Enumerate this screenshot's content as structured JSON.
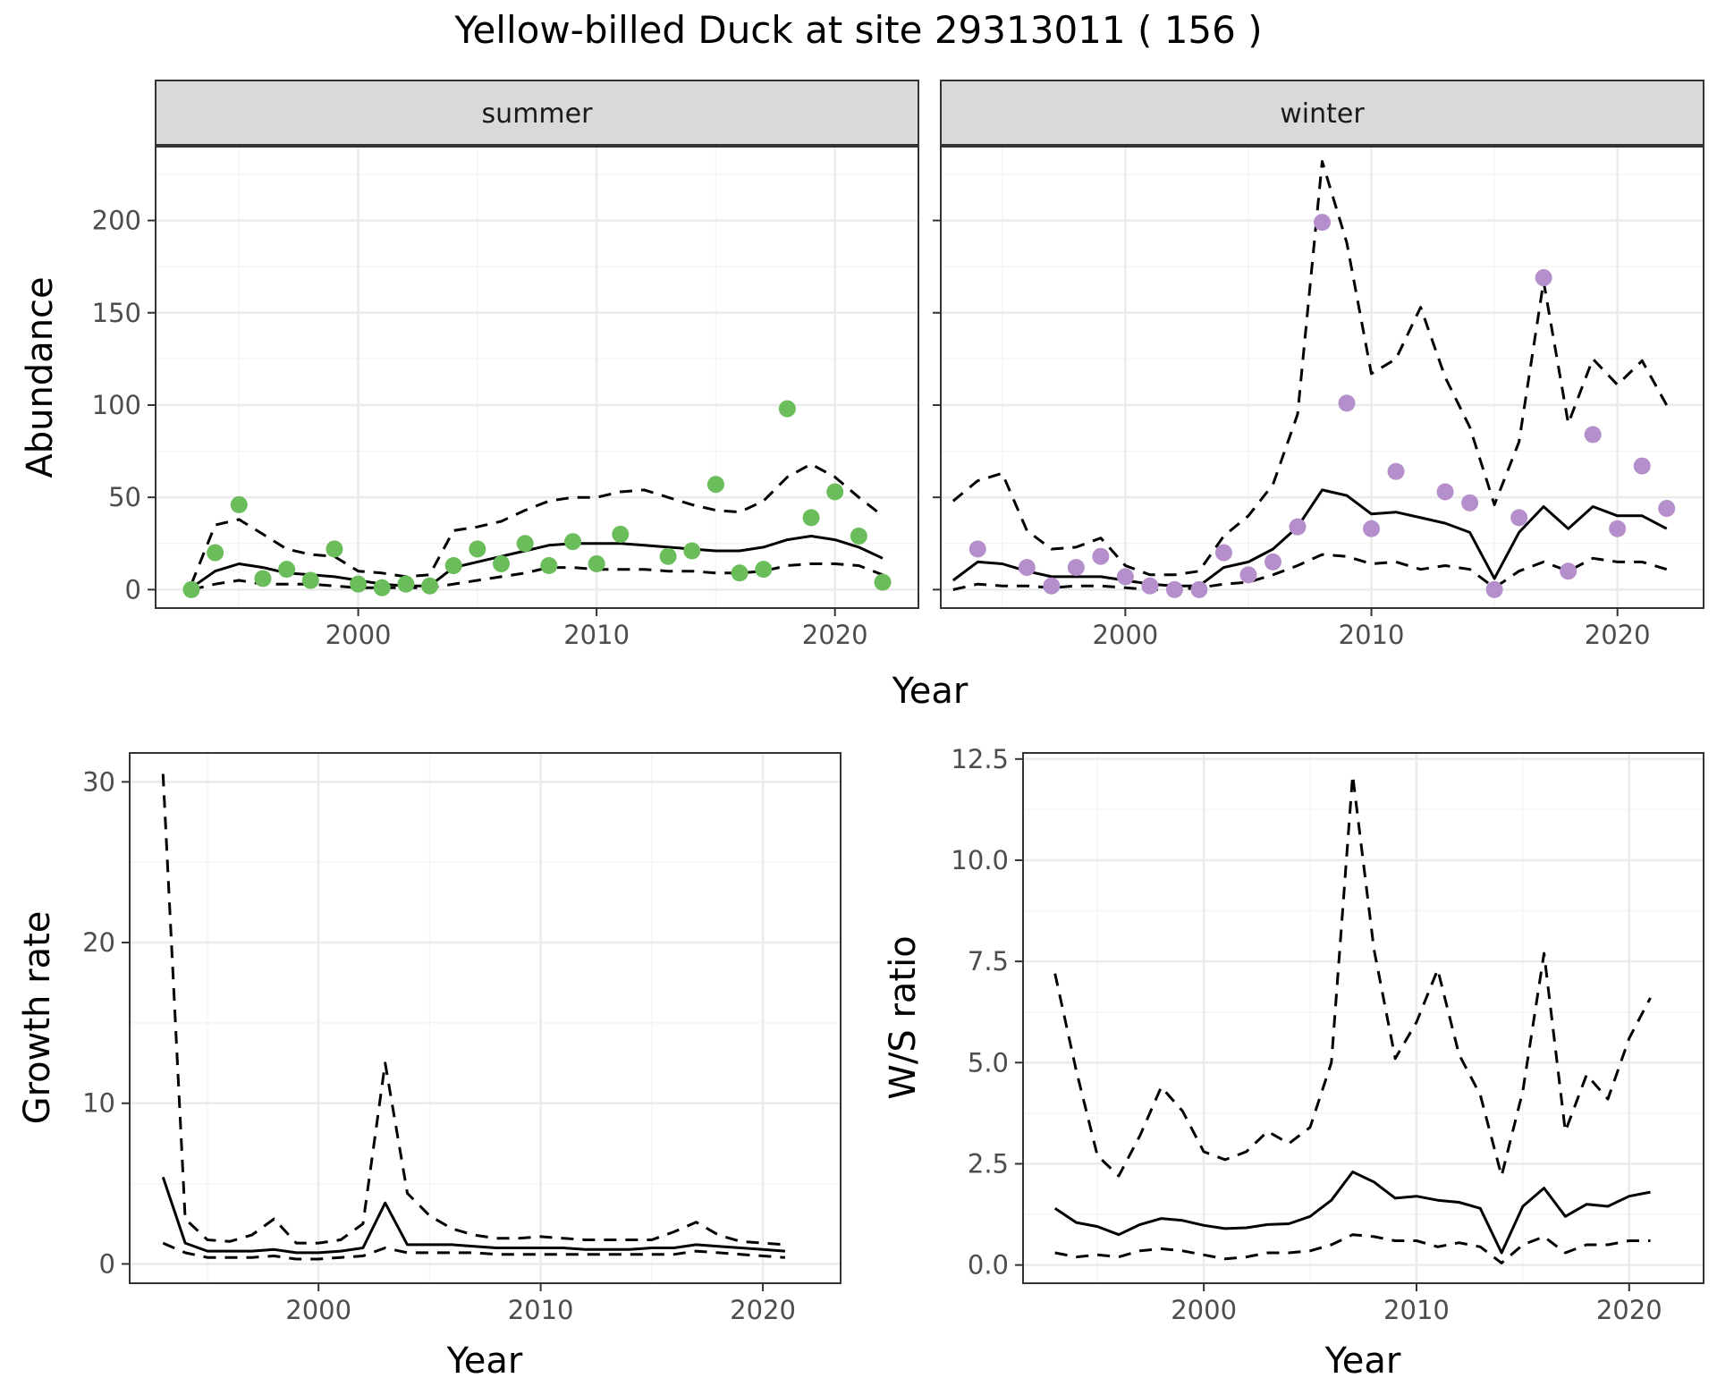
{
  "title": "Yellow-billed Duck at site 29313011 ( 156 )",
  "colors": {
    "summer_points": "#6ABD5A",
    "winter_points": "#B48FCB",
    "lines": "#000000"
  },
  "chart_data": [
    {
      "id": "summer",
      "type": "line",
      "strip": "summer",
      "xlabel": "",
      "ylabel": "Abundance",
      "xlim": [
        1991.5,
        2023.5
      ],
      "ylim": [
        -10,
        240
      ],
      "xticks": [
        2000,
        2010,
        2020
      ],
      "yticks": [
        0,
        50,
        100,
        150,
        200
      ],
      "show_y_ticks": true,
      "x": [
        1993,
        1994,
        1995,
        1996,
        1997,
        1998,
        1999,
        2000,
        2001,
        2002,
        2003,
        2004,
        2005,
        2006,
        2007,
        2008,
        2009,
        2010,
        2011,
        2012,
        2013,
        2014,
        2015,
        2016,
        2017,
        2018,
        2019,
        2020,
        2021,
        2022
      ],
      "estimate": [
        1,
        10,
        14,
        12,
        9,
        8,
        7,
        5,
        3,
        2,
        2,
        12,
        15,
        18,
        21,
        24,
        25,
        25,
        25,
        24,
        23,
        22,
        21,
        21,
        23,
        27,
        29,
        27,
        23,
        17
      ],
      "lower": [
        0,
        3,
        5,
        3,
        3,
        3,
        2,
        1,
        1,
        1,
        1,
        3,
        5,
        7,
        9,
        12,
        12,
        11,
        11,
        11,
        10,
        10,
        9,
        9,
        10,
        13,
        14,
        14,
        13,
        8
      ],
      "upper": [
        3,
        35,
        38,
        30,
        22,
        19,
        18,
        10,
        9,
        7,
        8,
        32,
        34,
        37,
        43,
        48,
        50,
        50,
        53,
        54,
        50,
        46,
        43,
        42,
        48,
        61,
        68,
        61,
        50,
        40
      ],
      "points": [
        0,
        20,
        46,
        6,
        11,
        5,
        22,
        3,
        1,
        3,
        2,
        13,
        22,
        14,
        25,
        13,
        26,
        14,
        30,
        null,
        18,
        21,
        57,
        9,
        11,
        98,
        39,
        53,
        29,
        4
      ],
      "point_color": "#6ABD5A"
    },
    {
      "id": "winter",
      "type": "line",
      "strip": "winter",
      "xlabel": "",
      "ylabel": "",
      "xlim": [
        1992.5,
        2023.5
      ],
      "ylim": [
        -10,
        240
      ],
      "xticks": [
        2000,
        2010,
        2020
      ],
      "yticks": [
        0,
        50,
        100,
        150,
        200
      ],
      "show_y_ticks": false,
      "x": [
        1993,
        1994,
        1995,
        1996,
        1997,
        1998,
        1999,
        2000,
        2001,
        2002,
        2003,
        2004,
        2005,
        2006,
        2007,
        2008,
        2009,
        2010,
        2011,
        2012,
        2013,
        2014,
        2015,
        2016,
        2017,
        2018,
        2019,
        2020,
        2021,
        2022
      ],
      "estimate": [
        5,
        15,
        14,
        10,
        7,
        7,
        7,
        5,
        3,
        2,
        2,
        12,
        15,
        22,
        34,
        54,
        51,
        41,
        42,
        39,
        36,
        31,
        6,
        31,
        45,
        33,
        45,
        40,
        40,
        33
      ],
      "lower": [
        0,
        3,
        2,
        2,
        1,
        2,
        2,
        1,
        0,
        0,
        1,
        3,
        4,
        8,
        13,
        19,
        18,
        14,
        15,
        11,
        13,
        11,
        1,
        10,
        15,
        10,
        17,
        15,
        15,
        11
      ],
      "upper": [
        48,
        59,
        63,
        32,
        22,
        23,
        28,
        13,
        8,
        8,
        10,
        29,
        40,
        57,
        95,
        232,
        188,
        117,
        125,
        153,
        115,
        88,
        46,
        80,
        167,
        90,
        125,
        111,
        124,
        100
      ],
      "points": [
        null,
        22,
        null,
        12,
        2,
        12,
        18,
        7,
        2,
        0,
        0,
        20,
        8,
        15,
        34,
        199,
        101,
        33,
        64,
        null,
        53,
        47,
        0,
        39,
        169,
        10,
        84,
        33,
        67,
        44
      ],
      "point_color": "#B48FCB"
    },
    {
      "id": "growth",
      "type": "line",
      "xlabel": "Year",
      "ylabel": "Growth rate",
      "xlim": [
        1991.5,
        2023.5
      ],
      "ylim": [
        -1.2,
        31.8
      ],
      "xticks": [
        2000,
        2010,
        2020
      ],
      "yticks": [
        0,
        10,
        20,
        30
      ],
      "show_y_ticks": true,
      "x": [
        1993,
        1994,
        1995,
        1996,
        1997,
        1998,
        1999,
        2000,
        2001,
        2002,
        2003,
        2004,
        2005,
        2006,
        2007,
        2008,
        2009,
        2010,
        2011,
        2012,
        2013,
        2014,
        2015,
        2016,
        2017,
        2018,
        2019,
        2020,
        2021
      ],
      "estimate": [
        5.4,
        1.3,
        0.8,
        0.8,
        0.8,
        0.9,
        0.7,
        0.7,
        0.8,
        1.0,
        3.8,
        1.2,
        1.2,
        1.2,
        1.1,
        1.0,
        1.0,
        1.0,
        1.0,
        0.9,
        0.9,
        0.9,
        1.0,
        1.0,
        1.2,
        1.1,
        1.0,
        0.9,
        0.8
      ],
      "lower": [
        1.3,
        0.7,
        0.4,
        0.4,
        0.4,
        0.5,
        0.3,
        0.3,
        0.4,
        0.5,
        1.0,
        0.7,
        0.7,
        0.7,
        0.7,
        0.6,
        0.6,
        0.6,
        0.6,
        0.6,
        0.6,
        0.6,
        0.6,
        0.6,
        0.8,
        0.7,
        0.6,
        0.5,
        0.4
      ],
      "upper": [
        30.5,
        2.8,
        1.5,
        1.4,
        1.8,
        2.8,
        1.3,
        1.3,
        1.5,
        2.5,
        12.5,
        4.4,
        3.0,
        2.2,
        1.8,
        1.6,
        1.6,
        1.7,
        1.6,
        1.5,
        1.5,
        1.5,
        1.5,
        2.0,
        2.6,
        1.8,
        1.4,
        1.3,
        1.2
      ]
    },
    {
      "id": "ratio",
      "type": "line",
      "xlabel": "Year",
      "ylabel": "W/S ratio",
      "xlim": [
        1991.5,
        2023.5
      ],
      "ylim": [
        -0.45,
        12.65
      ],
      "xticks": [
        2000,
        2010,
        2020
      ],
      "yticks": [
        "0.0",
        "2.5",
        "5.0",
        "7.5",
        "10.0",
        "12.5"
      ],
      "show_y_ticks": true,
      "x": [
        1993,
        1994,
        1995,
        1996,
        1997,
        1998,
        1999,
        2000,
        2001,
        2002,
        2003,
        2004,
        2005,
        2006,
        2007,
        2008,
        2009,
        2010,
        2011,
        2012,
        2013,
        2014,
        2015,
        2016,
        2017,
        2018,
        2019,
        2020,
        2021
      ],
      "estimate": [
        1.4,
        1.05,
        0.95,
        0.75,
        1.0,
        1.15,
        1.1,
        0.98,
        0.9,
        0.92,
        1.0,
        1.02,
        1.2,
        1.6,
        2.3,
        2.05,
        1.65,
        1.7,
        1.6,
        1.55,
        1.4,
        0.3,
        1.45,
        1.9,
        1.2,
        1.5,
        1.45,
        1.7,
        1.8
      ],
      "lower": [
        0.3,
        0.2,
        0.25,
        0.2,
        0.35,
        0.4,
        0.35,
        0.25,
        0.15,
        0.2,
        0.3,
        0.3,
        0.35,
        0.5,
        0.75,
        0.7,
        0.6,
        0.6,
        0.45,
        0.55,
        0.45,
        0.05,
        0.5,
        0.7,
        0.3,
        0.5,
        0.5,
        0.6,
        0.6
      ],
      "upper": [
        7.2,
        4.8,
        2.7,
        2.2,
        3.2,
        4.4,
        3.8,
        2.8,
        2.6,
        2.8,
        3.3,
        3.0,
        3.4,
        5.0,
        12.1,
        7.8,
        5.1,
        6.0,
        7.3,
        5.2,
        4.2,
        2.2,
        4.3,
        7.7,
        3.3,
        4.7,
        4.1,
        5.6,
        6.6
      ]
    }
  ]
}
